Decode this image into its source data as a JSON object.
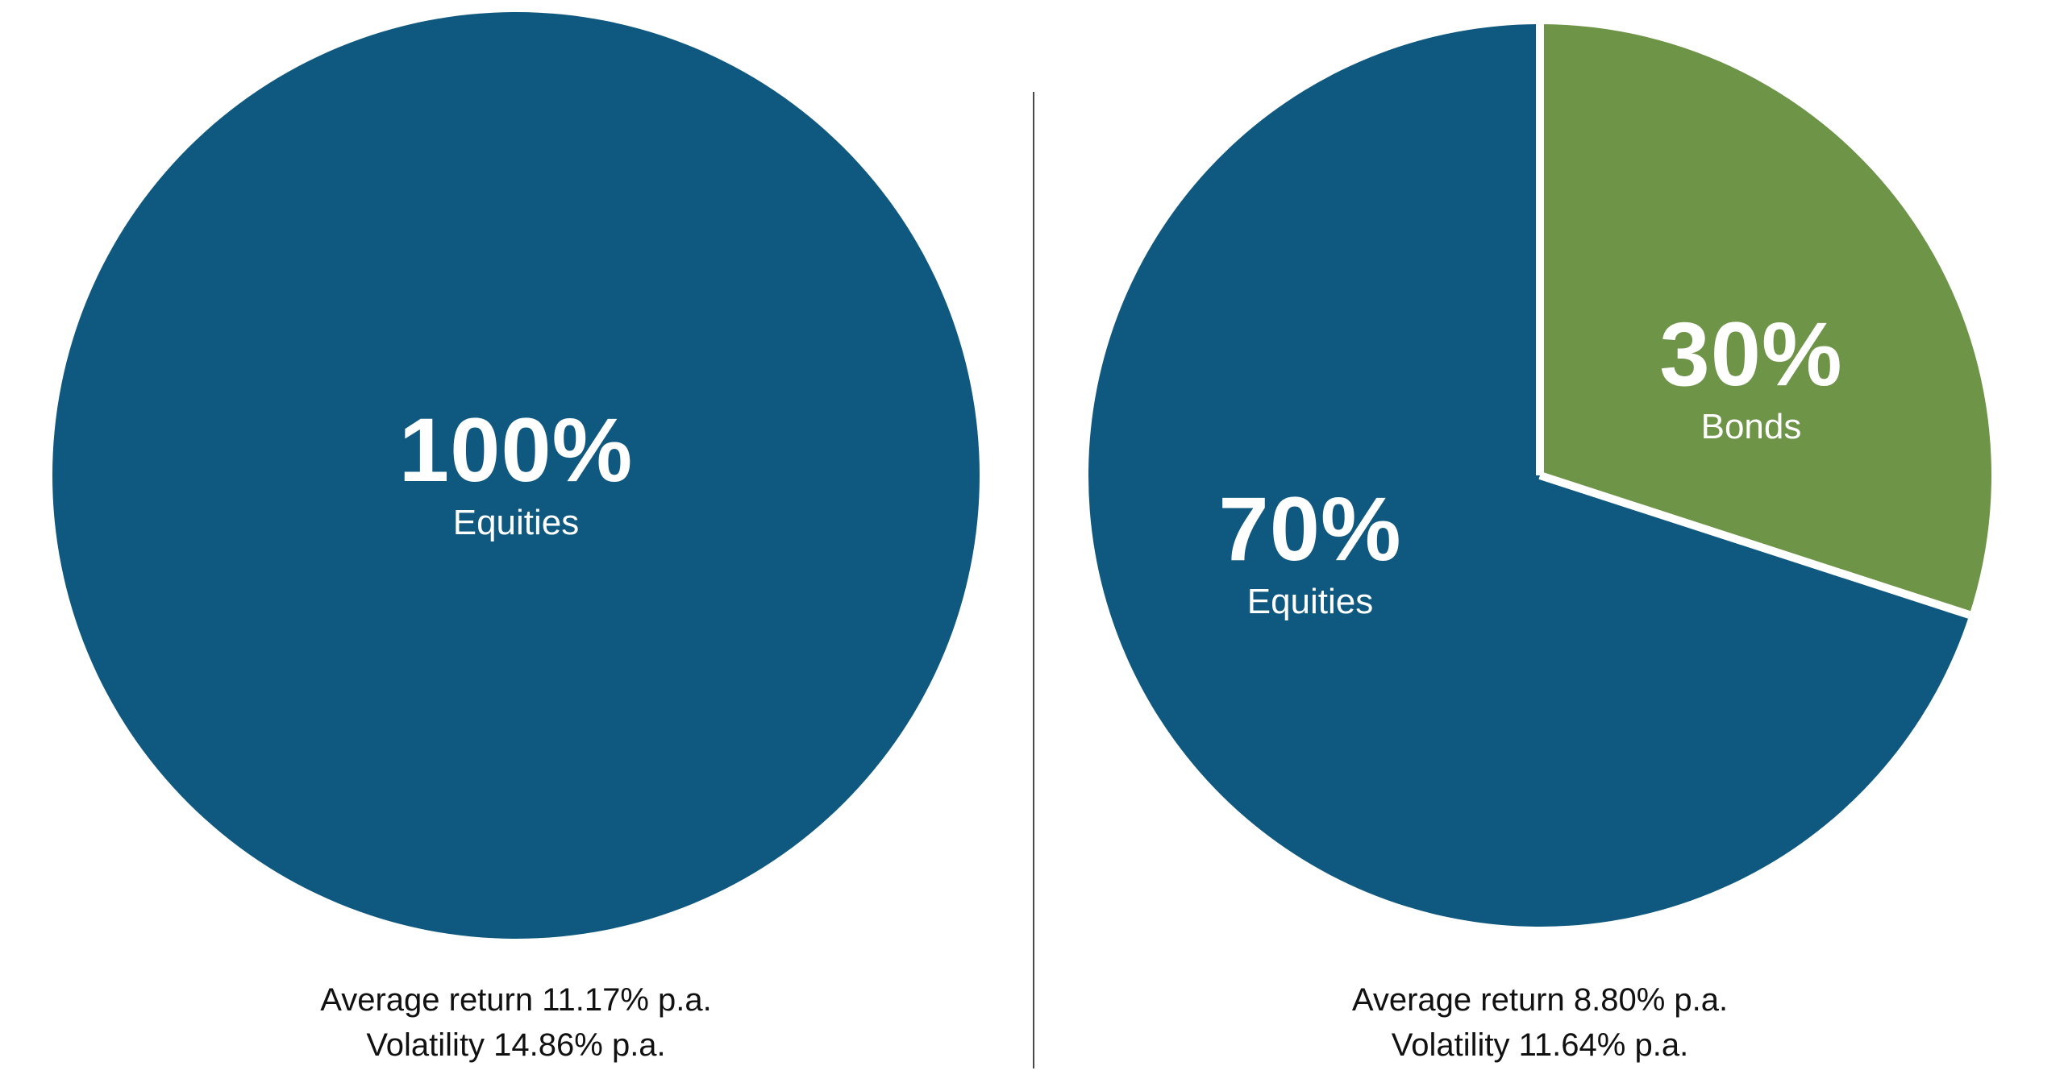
{
  "colors": {
    "equities": "#0F5880",
    "bonds": "#6D9447",
    "background": "#FFFFFF",
    "divider": "#4A4A4A",
    "slice_separator": "#FFFFFF",
    "slice_label_text": "#FFFFFF",
    "caption_text": "#111111"
  },
  "chart_data": [
    {
      "type": "pie",
      "title": "",
      "start_angle_deg": 0,
      "direction": "clockwise",
      "legend": "none",
      "slices": [
        {
          "label": "Equities",
          "value": 100,
          "color": "#0F5880"
        }
      ],
      "labels": {
        "equities": {
          "percent": "100%",
          "name": "Equities"
        }
      },
      "annotations": [
        "Average return 11.17% p.a.",
        "Volatility 14.86% p.a."
      ]
    },
    {
      "type": "pie",
      "title": "",
      "start_angle_deg": 0,
      "direction": "clockwise",
      "legend": "none",
      "slices": [
        {
          "label": "Bonds",
          "value": 30,
          "color": "#6D9447"
        },
        {
          "label": "Equities",
          "value": 70,
          "color": "#0F5880"
        }
      ],
      "labels": {
        "bonds": {
          "percent": "30%",
          "name": "Bonds"
        },
        "equities": {
          "percent": "70%",
          "name": "Equities"
        }
      },
      "annotations": [
        "Average return 8.80% p.a.",
        "Volatility 11.64% p.a."
      ]
    }
  ]
}
